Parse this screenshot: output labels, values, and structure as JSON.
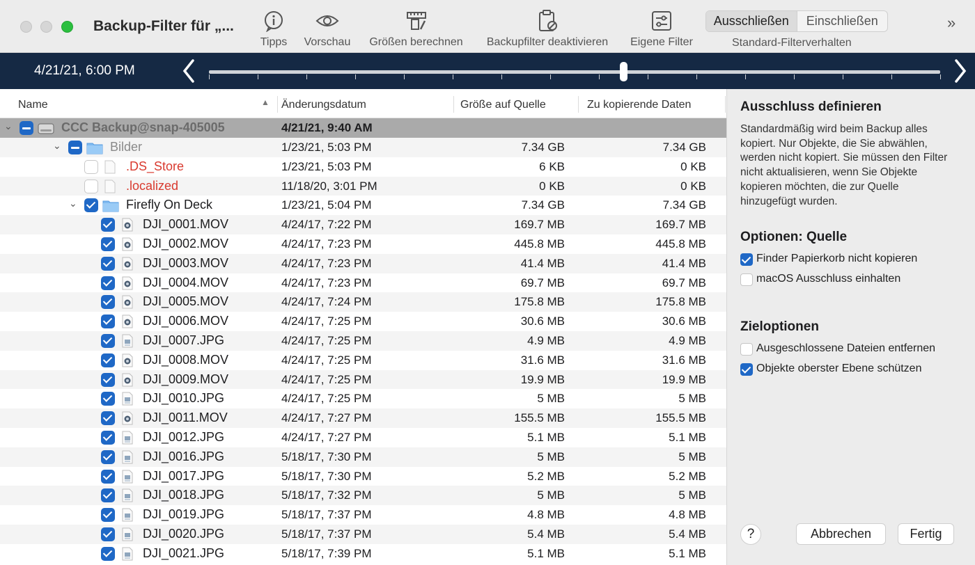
{
  "window": {
    "title": "Backup-Filter für „..."
  },
  "toolbar": {
    "tips": "Tipps",
    "preview": "Vorschau",
    "calc_sizes": "Größen berechnen",
    "disable_filter": "Backupfilter deaktivieren",
    "own_filter": "Eigene Filter",
    "seg_exclude": "Ausschließen",
    "seg_include": "Einschließen",
    "seg_label": "Standard-Filterverhalten",
    "overflow": "»"
  },
  "timeline": {
    "date": "4/21/21, 6:00 PM",
    "position": 0.567
  },
  "table": {
    "headers": {
      "name": "Name",
      "date": "Änderungsdatum",
      "size": "Größe auf Quelle",
      "copy": "Zu kopierende Daten"
    },
    "root": {
      "name": "CCC Backup@snap-405005",
      "date": "4/21/21, 9:40 AM"
    },
    "rows": [
      {
        "name": "Bilder",
        "date": "1/23/21, 5:03 PM",
        "size": "7.34 GB",
        "copy": "7.34 GB"
      },
      {
        "name": ".DS_Store",
        "date": "1/23/21, 5:03 PM",
        "size": "6 KB",
        "copy": "0 KB"
      },
      {
        "name": ".localized",
        "date": "11/18/20, 3:01 PM",
        "size": "0 KB",
        "copy": "0 KB"
      },
      {
        "name": "Firefly On Deck",
        "date": "1/23/21, 5:04 PM",
        "size": "7.34 GB",
        "copy": "7.34 GB"
      },
      {
        "name": "DJI_0001.MOV",
        "date": "4/24/17, 7:22 PM",
        "size": "169.7 MB",
        "copy": "169.7 MB"
      },
      {
        "name": "DJI_0002.MOV",
        "date": "4/24/17, 7:23 PM",
        "size": "445.8 MB",
        "copy": "445.8 MB"
      },
      {
        "name": "DJI_0003.MOV",
        "date": "4/24/17, 7:23 PM",
        "size": "41.4 MB",
        "copy": "41.4 MB"
      },
      {
        "name": "DJI_0004.MOV",
        "date": "4/24/17, 7:23 PM",
        "size": "69.7 MB",
        "copy": "69.7 MB"
      },
      {
        "name": "DJI_0005.MOV",
        "date": "4/24/17, 7:24 PM",
        "size": "175.8 MB",
        "copy": "175.8 MB"
      },
      {
        "name": "DJI_0006.MOV",
        "date": "4/24/17, 7:25 PM",
        "size": "30.6 MB",
        "copy": "30.6 MB"
      },
      {
        "name": "DJI_0007.JPG",
        "date": "4/24/17, 7:25 PM",
        "size": "4.9 MB",
        "copy": "4.9 MB"
      },
      {
        "name": "DJI_0008.MOV",
        "date": "4/24/17, 7:25 PM",
        "size": "31.6 MB",
        "copy": "31.6 MB"
      },
      {
        "name": "DJI_0009.MOV",
        "date": "4/24/17, 7:25 PM",
        "size": "19.9 MB",
        "copy": "19.9 MB"
      },
      {
        "name": "DJI_0010.JPG",
        "date": "4/24/17, 7:25 PM",
        "size": "5 MB",
        "copy": "5 MB"
      },
      {
        "name": "DJI_0011.MOV",
        "date": "4/24/17, 7:27 PM",
        "size": "155.5 MB",
        "copy": "155.5 MB"
      },
      {
        "name": "DJI_0012.JPG",
        "date": "4/24/17, 7:27 PM",
        "size": "5.1 MB",
        "copy": "5.1 MB"
      },
      {
        "name": "DJI_0016.JPG",
        "date": "5/18/17, 7:30 PM",
        "size": "5 MB",
        "copy": "5 MB"
      },
      {
        "name": "DJI_0017.JPG",
        "date": "5/18/17, 7:30 PM",
        "size": "5.2 MB",
        "copy": "5.2 MB"
      },
      {
        "name": "DJI_0018.JPG",
        "date": "5/18/17, 7:32 PM",
        "size": "5 MB",
        "copy": "5 MB"
      },
      {
        "name": "DJI_0019.JPG",
        "date": "5/18/17, 7:37 PM",
        "size": "4.8 MB",
        "copy": "4.8 MB"
      },
      {
        "name": "DJI_0020.JPG",
        "date": "5/18/17, 7:37 PM",
        "size": "5.4 MB",
        "copy": "5.4 MB"
      },
      {
        "name": "DJI_0021.JPG",
        "date": "5/18/17, 7:39 PM",
        "size": "5.1 MB",
        "copy": "5.1 MB"
      }
    ]
  },
  "panel": {
    "heading": "Ausschluss definieren",
    "text": "Standardmäßig wird beim Backup alles kopiert. Nur Objekte, die Sie abwählen, werden nicht kopiert. Sie müssen den Filter nicht aktualisieren, wenn Sie Objekte kopieren möchten, die zur Quelle hinzugefügt wurden.",
    "source_heading": "Optionen: Quelle",
    "opt_finder_trash": "Finder Papierkorb nicht kopieren",
    "opt_macos_exclusion": "macOS Ausschluss einhalten",
    "dest_heading": "Zieloptionen",
    "opt_remove_excluded": "Ausgeschlossene Dateien entfernen",
    "opt_protect_top": "Objekte oberster Ebene schützen",
    "help": "?",
    "cancel": "Abbrechen",
    "done": "Fertig"
  },
  "colors": {
    "accent": "#1f68c6",
    "timeline_bg": "#152944",
    "excluded_text": "#d93a2f"
  }
}
